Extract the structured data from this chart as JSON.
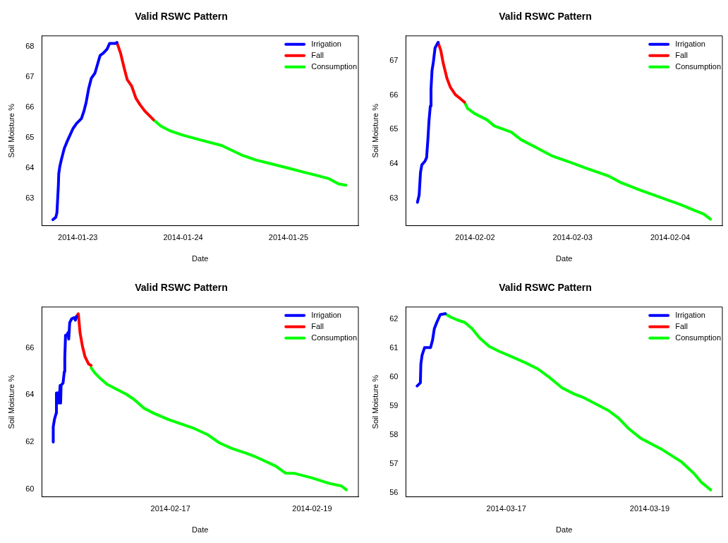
{
  "chart_data": [
    {
      "type": "line",
      "title": "Valid RSWC Pattern",
      "xlabel": "Date",
      "ylabel": "Soil Moisture %",
      "legend": "top right",
      "xlim": [
        "2014-01-22T15:50",
        "2014-01-25T15:55"
      ],
      "xticks": [
        "2014-01-23",
        "2014-01-24",
        "2014-01-25"
      ],
      "ylim": [
        62.09,
        68.36
      ],
      "yticks": [
        63,
        64,
        65,
        66,
        67,
        68
      ],
      "series": [
        {
          "name": "Irrigation",
          "color": "#0000ff",
          "x": [
            "2014-01-22T18:20",
            "2014-01-22T19:00",
            "2014-01-22T19:15",
            "2014-01-22T19:25",
            "2014-01-22T19:35",
            "2014-01-22T19:40",
            "2014-01-22T19:55",
            "2014-01-22T20:15",
            "2014-01-22T20:55",
            "2014-01-22T21:45",
            "2014-01-22T22:55",
            "2014-01-22T23:45",
            "2014-01-23T00:50",
            "2014-01-23T01:25",
            "2014-01-23T01:55",
            "2014-01-23T02:30",
            "2014-01-23T03:05",
            "2014-01-23T03:55",
            "2014-01-23T04:25",
            "2014-01-23T05:05",
            "2014-01-23T05:50",
            "2014-01-23T06:40",
            "2014-01-23T07:15",
            "2014-01-23T08:35",
            "2014-01-23T08:55"
          ],
          "values": [
            62.29,
            62.37,
            62.52,
            62.97,
            63.43,
            63.81,
            64.05,
            64.26,
            64.64,
            64.93,
            65.3,
            65.47,
            65.63,
            65.88,
            66.17,
            66.63,
            66.96,
            67.13,
            67.38,
            67.71,
            67.79,
            67.92,
            68.11,
            68.11,
            68.14
          ]
        },
        {
          "name": "Fall",
          "color": "#ff0000",
          "x": [
            "2014-01-23T08:55",
            "2014-01-23T09:45",
            "2014-01-23T10:35",
            "2014-01-23T11:15",
            "2014-01-23T12:15",
            "2014-01-23T13:15",
            "2014-01-23T14:10",
            "2014-01-23T15:15",
            "2014-01-23T17:15"
          ],
          "values": [
            68.14,
            67.79,
            67.29,
            66.92,
            66.71,
            66.3,
            66.09,
            65.88,
            65.59
          ]
        },
        {
          "name": "Consumption",
          "color": "#00ff00",
          "x": [
            "2014-01-23T17:15",
            "2014-01-23T18:55",
            "2014-01-23T21:05",
            "2014-01-23T23:55",
            "2014-01-24T03:45",
            "2014-01-24T08:45",
            "2014-01-24T13:15",
            "2014-01-24T16:35",
            "2014-01-24T19:55",
            "2014-01-24T23:45",
            "2014-01-25T03:40",
            "2014-01-25T06:25",
            "2014-01-25T09:15",
            "2014-01-25T11:25",
            "2014-01-25T13:05"
          ],
          "values": [
            65.59,
            65.38,
            65.22,
            65.08,
            64.93,
            64.74,
            64.43,
            64.26,
            64.14,
            64.0,
            63.85,
            63.75,
            63.64,
            63.47,
            63.43
          ]
        }
      ]
    },
    {
      "type": "line",
      "title": "Valid RSWC Pattern",
      "xlabel": "Date",
      "ylabel": "Soil Moisture %",
      "legend": "top right",
      "xlim": [
        "2014-02-01T07:00",
        "2014-02-04T12:50"
      ],
      "xticks": [
        "2014-02-02",
        "2014-02-03",
        "2014-02-04"
      ],
      "ylim": [
        62.2,
        67.72
      ],
      "yticks": [
        63,
        64,
        65,
        66,
        67
      ],
      "series": [
        {
          "name": "Irrigation",
          "color": "#0000ff",
          "x": [
            "2014-02-01T09:50",
            "2014-02-01T10:15",
            "2014-02-01T10:35",
            "2014-02-01T10:55",
            "2014-02-01T11:40",
            "2014-02-01T12:05",
            "2014-02-01T12:25",
            "2014-02-01T12:40",
            "2014-02-01T13:00",
            "2014-02-01T13:10",
            "2014-02-01T13:25",
            "2014-02-01T13:45",
            "2014-02-01T14:10",
            "2014-02-01T14:40",
            "2014-02-01T14:55"
          ],
          "values": [
            62.88,
            63.09,
            63.75,
            63.97,
            64.07,
            64.18,
            64.73,
            65.24,
            65.68,
            66.16,
            66.71,
            66.96,
            67.37,
            67.48,
            67.53
          ]
        },
        {
          "name": "Fall",
          "color": "#ff0000",
          "x": [
            "2014-02-01T14:55",
            "2014-02-01T15:35",
            "2014-02-01T16:10",
            "2014-02-01T17:05",
            "2014-02-01T17:55",
            "2014-02-01T19:10",
            "2014-02-01T20:20",
            "2014-02-01T21:25"
          ],
          "values": [
            67.53,
            67.29,
            66.93,
            66.49,
            66.23,
            66.01,
            65.9,
            65.79
          ]
        },
        {
          "name": "Consumption",
          "color": "#00ff00",
          "x": [
            "2014-02-01T21:25",
            "2014-02-01T22:10",
            "2014-02-01T23:55",
            "2014-02-02T02:55",
            "2014-02-02T04:45",
            "2014-02-02T08:55",
            "2014-02-02T11:20",
            "2014-02-02T14:55",
            "2014-02-02T19:05",
            "2014-02-02T23:55",
            "2014-02-03T02:55",
            "2014-02-03T08:55",
            "2014-02-03T11:55",
            "2014-02-03T16:40",
            "2014-02-03T20:55",
            "2014-02-04T02:50",
            "2014-02-04T05:50",
            "2014-02-04T08:15",
            "2014-02-04T09:55"
          ],
          "values": [
            65.79,
            65.61,
            65.46,
            65.28,
            65.1,
            64.92,
            64.7,
            64.48,
            64.22,
            64.02,
            63.89,
            63.64,
            63.45,
            63.23,
            63.05,
            62.8,
            62.65,
            62.54,
            62.39
          ]
        }
      ]
    },
    {
      "type": "line",
      "title": "Valid RSWC Pattern",
      "xlabel": "Date",
      "ylabel": "Soil Moisture %",
      "legend": "top right",
      "xlim": [
        "2014-02-15T04:25",
        "2014-02-19T15:40"
      ],
      "xticks": [
        "2014-02-17",
        "2014-02-19"
      ],
      "ylim": [
        59.67,
        67.73
      ],
      "yticks": [
        60,
        62,
        64,
        66
      ],
      "series": [
        {
          "name": "Irrigation",
          "color": "#0000ff",
          "x": [
            "2014-02-15T08:15",
            "2014-02-15T08:15",
            "2014-02-15T08:40",
            "2014-02-15T09:15",
            "2014-02-15T09:20",
            "2014-02-15T09:55",
            "2014-02-15T10:10",
            "2014-02-15T10:35",
            "2014-02-15T10:45",
            "2014-02-15T10:55",
            "2014-02-15T11:35",
            "2014-02-15T12:00",
            "2014-02-15T12:10",
            "2014-02-15T12:25",
            "2014-02-15T12:50",
            "2014-02-15T13:15",
            "2014-02-15T13:30",
            "2014-02-15T13:50",
            "2014-02-15T14:30",
            "2014-02-15T15:20",
            "2014-02-15T15:45",
            "2014-02-15T16:10"
          ],
          "values": [
            62.0,
            62.64,
            62.96,
            63.22,
            64.08,
            64.08,
            63.65,
            64.4,
            63.65,
            64.4,
            64.51,
            64.99,
            65.57,
            66.53,
            66.53,
            66.64,
            66.37,
            67.07,
            67.23,
            67.28,
            67.17,
            67.33
          ]
        },
        {
          "name": "Fall",
          "color": "#ff0000",
          "x": [
            "2014-02-15T16:10",
            "2014-02-15T16:45",
            "2014-02-15T17:20",
            "2014-02-15T18:10",
            "2014-02-15T19:00",
            "2014-02-15T20:15",
            "2014-02-15T21:05"
          ],
          "values": [
            67.33,
            67.44,
            66.64,
            66.05,
            65.63,
            65.31,
            65.25
          ]
        },
        {
          "name": "Consumption",
          "color": "#00ff00",
          "x": [
            "2014-02-15T21:05",
            "2014-02-15T22:20",
            "2014-02-16T00:00",
            "2014-02-16T02:30",
            "2014-02-16T04:55",
            "2014-02-16T09:05",
            "2014-02-16T11:35",
            "2014-02-16T14:55",
            "2014-02-16T18:15",
            "2014-02-16T23:10",
            "2014-02-17T04:10",
            "2014-02-17T08:15",
            "2014-02-17T12:25",
            "2014-02-17T16:35",
            "2014-02-17T20:40",
            "2014-02-18T01:40",
            "2014-02-18T05:00",
            "2014-02-18T11:35",
            "2014-02-18T14:55",
            "2014-02-18T18:15",
            "2014-02-19T00:00",
            "2014-02-19T05:50",
            "2014-02-19T09:55",
            "2014-02-19T11:35"
          ],
          "values": [
            65.15,
            64.93,
            64.72,
            64.45,
            64.29,
            64.02,
            63.81,
            63.44,
            63.22,
            62.96,
            62.74,
            62.56,
            62.32,
            61.96,
            61.73,
            61.52,
            61.36,
            60.98,
            60.68,
            60.66,
            60.47,
            60.24,
            60.13,
            59.97
          ]
        }
      ]
    },
    {
      "type": "line",
      "title": "Valid RSWC Pattern",
      "xlabel": "Date",
      "ylabel": "Soil Moisture %",
      "legend": "top right",
      "xlim": [
        "2014-03-15T14:25",
        "2014-03-20T00:20"
      ],
      "xticks": [
        "2014-03-17",
        "2014-03-19"
      ],
      "ylim": [
        55.87,
        62.43
      ],
      "yticks": [
        56,
        57,
        58,
        59,
        60,
        61,
        62
      ],
      "series": [
        {
          "name": "Irrigation",
          "color": "#0000ff",
          "x": [
            "2014-03-15T18:10",
            "2014-03-15T19:15",
            "2014-03-15T19:25",
            "2014-03-15T19:50",
            "2014-03-15T20:40",
            "2014-03-15T22:40",
            "2014-03-15T23:20",
            "2014-03-15T23:55",
            "2014-03-16T00:45",
            "2014-03-16T01:55",
            "2014-03-16T03:35"
          ],
          "values": [
            59.7,
            59.81,
            60.46,
            60.77,
            61.03,
            61.03,
            61.29,
            61.68,
            61.9,
            62.17,
            62.2
          ]
        },
        {
          "name": "Fall",
          "color": "#ff0000"
        },
        {
          "name": "Consumption",
          "color": "#00ff00",
          "x": [
            "2014-03-16T03:35",
            "2014-03-16T05:15",
            "2014-03-16T07:40",
            "2014-03-16T10:05",
            "2014-03-16T12:35",
            "2014-03-16T15:00",
            "2014-03-16T18:15",
            "2014-03-16T21:35",
            "2014-03-17T01:40",
            "2014-03-17T06:30",
            "2014-03-17T10:35",
            "2014-03-17T14:40",
            "2014-03-17T18:45",
            "2014-03-17T22:50",
            "2014-03-18T02:05",
            "2014-03-18T06:10",
            "2014-03-18T10:15",
            "2014-03-18T13:35",
            "2014-03-18T16:50",
            "2014-03-18T20:55",
            "2014-03-19T00:10",
            "2014-03-19T04:15",
            "2014-03-19T10:45",
            "2014-03-19T14:50",
            "2014-03-19T17:20",
            "2014-03-19T20:25"
          ],
          "values": [
            62.2,
            62.09,
            61.98,
            61.9,
            61.68,
            61.37,
            61.07,
            60.9,
            60.72,
            60.5,
            60.29,
            59.98,
            59.63,
            59.42,
            59.29,
            59.07,
            58.85,
            58.59,
            58.24,
            57.9,
            57.72,
            57.5,
            57.07,
            56.68,
            56.37,
            56.11
          ]
        }
      ]
    }
  ]
}
